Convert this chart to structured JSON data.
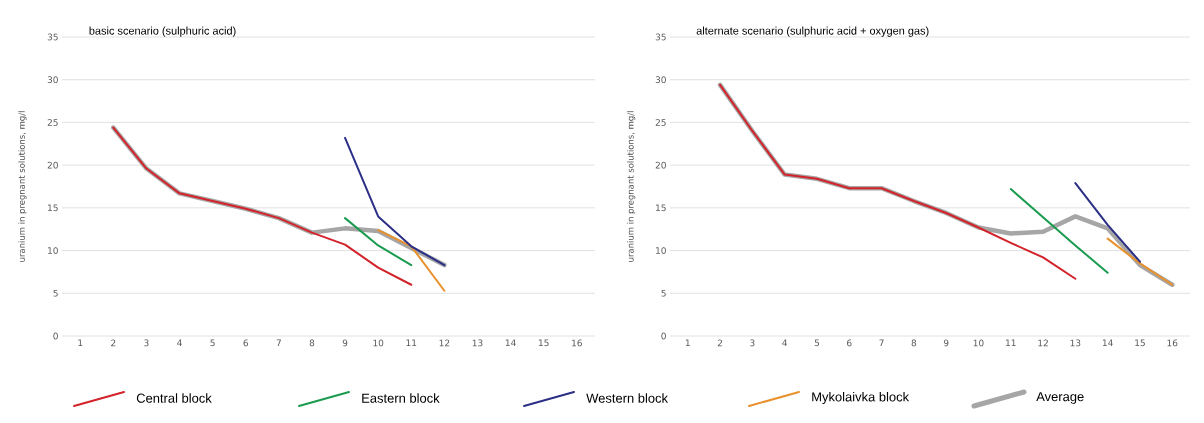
{
  "chart_data": [
    {
      "type": "line",
      "title": "basic scenario (sulphuric acid)",
      "ylabel": "uranium in pregnant solutions, mg/l",
      "categories": [
        "1",
        "2",
        "3",
        "4",
        "5",
        "6",
        "7",
        "8",
        "9",
        "10",
        "11",
        "12",
        "13",
        "14",
        "15",
        "16"
      ],
      "ylim": [
        0,
        35
      ],
      "yticks": [
        0,
        5,
        10,
        15,
        20,
        25,
        30,
        35
      ],
      "grid": "y",
      "legend": "bottom",
      "line_style": "solid",
      "marker": "none",
      "series": [
        {
          "name": "Central block",
          "color": "#d2232a",
          "values": [
            null,
            24.4,
            19.6,
            16.7,
            15.8,
            14.9,
            13.8,
            12.1,
            10.7,
            8.0,
            6.0,
            null,
            null,
            null,
            null,
            null
          ]
        },
        {
          "name": "Eastern block",
          "color": "#1a9b4f",
          "values": [
            null,
            null,
            null,
            null,
            null,
            null,
            null,
            null,
            13.8,
            10.6,
            8.3,
            null,
            null,
            null,
            null,
            null
          ]
        },
        {
          "name": "Western block",
          "color": "#2b2f86",
          "values": [
            null,
            null,
            null,
            null,
            null,
            null,
            null,
            null,
            23.2,
            14.0,
            10.5,
            8.3,
            null,
            null,
            null,
            null
          ]
        },
        {
          "name": "Mykolaivka block",
          "color": "#e8912d",
          "values": [
            null,
            null,
            null,
            null,
            null,
            null,
            null,
            null,
            null,
            12.4,
            10.5,
            5.3,
            null,
            null,
            null,
            null
          ]
        },
        {
          "name": "Average",
          "color": "#a6a6a6",
          "values": [
            null,
            24.4,
            19.6,
            16.7,
            15.8,
            14.9,
            13.8,
            12.1,
            12.6,
            12.3,
            10.3,
            8.3,
            null,
            null,
            null,
            null
          ]
        }
      ]
    },
    {
      "type": "line",
      "title": "alternate scenario (sulphuric acid + oxygen gas)",
      "ylabel": "uranium in pregnant solutions, mg/l",
      "categories": [
        "1",
        "2",
        "3",
        "4",
        "5",
        "6",
        "7",
        "8",
        "9",
        "10",
        "11",
        "12",
        "13",
        "14",
        "15",
        "16"
      ],
      "ylim": [
        0,
        35
      ],
      "yticks": [
        0,
        5,
        10,
        15,
        20,
        25,
        30,
        35
      ],
      "grid": "y",
      "line_style": "solid",
      "marker": "none",
      "series": [
        {
          "color": "#d2232a",
          "values": [
            null,
            29.4,
            24.0,
            18.9,
            18.4,
            17.3,
            17.3,
            15.8,
            14.4,
            12.7,
            10.9,
            9.2,
            6.7,
            null,
            null,
            null
          ]
        },
        {
          "color": "#1a9b4f",
          "values": [
            null,
            null,
            null,
            null,
            null,
            null,
            null,
            null,
            null,
            null,
            17.2,
            13.9,
            10.6,
            7.4,
            null,
            null
          ]
        },
        {
          "color": "#2b2f86",
          "values": [
            null,
            null,
            null,
            null,
            null,
            null,
            null,
            null,
            null,
            null,
            null,
            null,
            17.9,
            13.0,
            8.7,
            null
          ]
        },
        {
          "color": "#e8912d",
          "values": [
            null,
            null,
            null,
            null,
            null,
            null,
            null,
            null,
            null,
            null,
            null,
            null,
            null,
            11.4,
            8.5,
            6.0
          ]
        },
        {
          "color": "#a6a6a6",
          "values": [
            null,
            29.4,
            24.0,
            18.9,
            18.4,
            17.3,
            17.3,
            15.8,
            14.4,
            12.7,
            12.0,
            12.2,
            14.0,
            12.6,
            8.3,
            6.0
          ]
        }
      ]
    }
  ]
}
